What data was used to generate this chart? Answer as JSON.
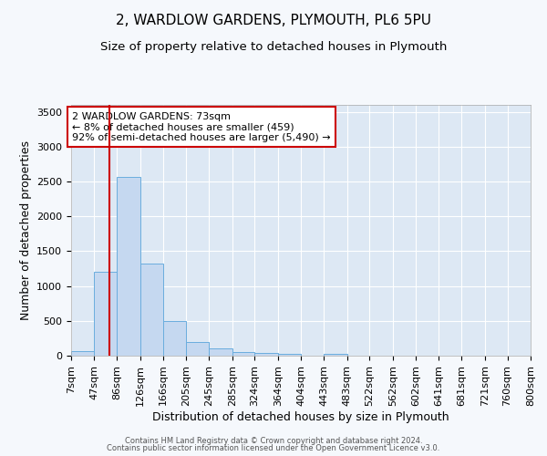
{
  "title": "2, WARDLOW GARDENS, PLYMOUTH, PL6 5PU",
  "subtitle": "Size of property relative to detached houses in Plymouth",
  "xlabel": "Distribution of detached houses by size in Plymouth",
  "ylabel": "Number of detached properties",
  "bin_edges": [
    7,
    47,
    86,
    126,
    166,
    205,
    245,
    285,
    324,
    364,
    404,
    443,
    483,
    522,
    562,
    602,
    641,
    681,
    721,
    760,
    800
  ],
  "bin_labels": [
    "7sqm",
    "47sqm",
    "86sqm",
    "126sqm",
    "166sqm",
    "205sqm",
    "245sqm",
    "285sqm",
    "324sqm",
    "364sqm",
    "404sqm",
    "443sqm",
    "483sqm",
    "522sqm",
    "562sqm",
    "602sqm",
    "641sqm",
    "681sqm",
    "721sqm",
    "760sqm",
    "800sqm"
  ],
  "bar_heights": [
    60,
    1210,
    2560,
    1325,
    500,
    195,
    110,
    55,
    40,
    30,
    0,
    30,
    0,
    0,
    0,
    0,
    0,
    0,
    0,
    0
  ],
  "bar_color": "#c5d8f0",
  "bar_edge_color": "#6aadde",
  "property_size": 73,
  "property_line_color": "#cc0000",
  "annotation_text": "2 WARDLOW GARDENS: 73sqm\n← 8% of detached houses are smaller (459)\n92% of semi-detached houses are larger (5,490) →",
  "annotation_box_color": "#ffffff",
  "annotation_box_edge_color": "#cc0000",
  "ylim": [
    0,
    3600
  ],
  "yticks": [
    0,
    500,
    1000,
    1500,
    2000,
    2500,
    3000,
    3500
  ],
  "axes_background_color": "#dde8f4",
  "figure_background_color": "#f5f8fc",
  "grid_color": "#ffffff",
  "title_fontsize": 11,
  "subtitle_fontsize": 9.5,
  "xlabel_fontsize": 9,
  "ylabel_fontsize": 9,
  "tick_fontsize": 8,
  "footer_line1": "Contains HM Land Registry data © Crown copyright and database right 2024.",
  "footer_line2": "Contains public sector information licensed under the Open Government Licence v3.0."
}
